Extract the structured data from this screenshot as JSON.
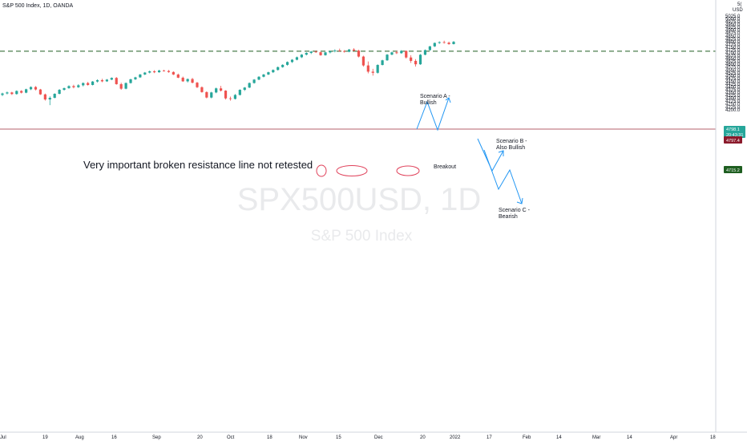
{
  "header": {
    "title": "S&P 500 Index, 1D, OANDA",
    "corner": "5(",
    "currency": "USD"
  },
  "watermark": {
    "symbol": "SPX500USD, 1D",
    "name": "S&P 500 Index"
  },
  "colors": {
    "up": "#26a69a",
    "down": "#ef5350",
    "resistance": "#1e5e20",
    "price_line": "#9c2c3a",
    "annotation": "#2196f3",
    "circle": "#e0415a"
  },
  "annotations": {
    "resistance_note": "Very important broken resistance line not retested",
    "breakout": "Breakout",
    "scenario_a": [
      "Scenario A -",
      "Bullish"
    ],
    "scenario_b": [
      "Scenario B -",
      "Also Bullish"
    ],
    "scenario_c": [
      "Scenario C -",
      "Bearish"
    ]
  },
  "price_labels": {
    "last": "4798.1",
    "countdown": "20:43:31",
    "prev": "4797.4",
    "resistance": "4715.2"
  },
  "chart_data": {
    "type": "candlestick",
    "title": "S&P 500 Index, 1D, OANDA",
    "y_ticks": [
      4200,
      4225,
      4250,
      4275,
      4300,
      4325,
      4350,
      4375,
      4400,
      4425,
      4450,
      4475,
      4500,
      4525,
      4550,
      4575,
      4600,
      4625,
      4650,
      4675,
      4700,
      4725,
      4750,
      4775,
      4800,
      4825,
      4850,
      4875,
      4900,
      4925,
      4950,
      4975,
      5000,
      5025,
      5050
    ],
    "x_ticks": [
      "Jul",
      "19",
      "Aug",
      "16",
      "Sep",
      "20",
      "Oct",
      "18",
      "Nov",
      "15",
      "Dec",
      "20",
      "2022",
      "17",
      "Feb",
      "14",
      "Mar",
      "14",
      "Apr",
      "18"
    ],
    "resistance_level": 4715.2,
    "current_price": 4798.1,
    "candles": [
      [
        4330,
        4350,
        4320,
        4343
      ],
      [
        4343,
        4360,
        4335,
        4352
      ],
      [
        4352,
        4358,
        4330,
        4338
      ],
      [
        4338,
        4370,
        4333,
        4365
      ],
      [
        4365,
        4372,
        4343,
        4350
      ],
      [
        4350,
        4385,
        4345,
        4380
      ],
      [
        4380,
        4405,
        4373,
        4400
      ],
      [
        4400,
        4408,
        4370,
        4378
      ],
      [
        4378,
        4383,
        4330,
        4335
      ],
      [
        4335,
        4342,
        4280,
        4290
      ],
      [
        4290,
        4318,
        4240,
        4305
      ],
      [
        4305,
        4345,
        4300,
        4340
      ],
      [
        4340,
        4382,
        4335,
        4375
      ],
      [
        4375,
        4395,
        4368,
        4390
      ],
      [
        4390,
        4415,
        4384,
        4408
      ],
      [
        4408,
        4420,
        4388,
        4398
      ],
      [
        4398,
        4425,
        4392,
        4415
      ],
      [
        4415,
        4440,
        4405,
        4435
      ],
      [
        4435,
        4445,
        4412,
        4418
      ],
      [
        4418,
        4452,
        4414,
        4448
      ],
      [
        4448,
        4468,
        4440,
        4460
      ],
      [
        4460,
        4472,
        4442,
        4450
      ],
      [
        4450,
        4470,
        4445,
        4465
      ],
      [
        4465,
        4485,
        4460,
        4480
      ],
      [
        4480,
        4488,
        4420,
        4425
      ],
      [
        4425,
        4438,
        4375,
        4385
      ],
      [
        4385,
        4440,
        4380,
        4435
      ],
      [
        4435,
        4472,
        4430,
        4468
      ],
      [
        4468,
        4490,
        4462,
        4485
      ],
      [
        4485,
        4515,
        4480,
        4510
      ],
      [
        4510,
        4532,
        4505,
        4527
      ],
      [
        4527,
        4545,
        4520,
        4538
      ],
      [
        4538,
        4548,
        4522,
        4530
      ],
      [
        4530,
        4552,
        4525,
        4545
      ],
      [
        4545,
        4552,
        4536,
        4541
      ],
      [
        4541,
        4550,
        4525,
        4532
      ],
      [
        4532,
        4538,
        4505,
        4510
      ],
      [
        4510,
        4518,
        4478,
        4482
      ],
      [
        4482,
        4492,
        4445,
        4450
      ],
      [
        4450,
        4475,
        4440,
        4470
      ],
      [
        4470,
        4480,
        4432,
        4438
      ],
      [
        4438,
        4445,
        4390,
        4398
      ],
      [
        4398,
        4405,
        4350,
        4355
      ],
      [
        4355,
        4362,
        4300,
        4307
      ],
      [
        4307,
        4358,
        4300,
        4352
      ],
      [
        4352,
        4395,
        4345,
        4388
      ],
      [
        4388,
        4410,
        4360,
        4368
      ],
      [
        4368,
        4372,
        4290,
        4300
      ],
      [
        4300,
        4315,
        4280,
        4295
      ],
      [
        4295,
        4338,
        4290,
        4330
      ],
      [
        4330,
        4380,
        4325,
        4375
      ],
      [
        4375,
        4400,
        4365,
        4395
      ],
      [
        4395,
        4440,
        4390,
        4435
      ],
      [
        4435,
        4470,
        4430,
        4465
      ],
      [
        4465,
        4495,
        4460,
        4490
      ],
      [
        4490,
        4515,
        4485,
        4510
      ],
      [
        4510,
        4535,
        4505,
        4530
      ],
      [
        4530,
        4555,
        4523,
        4550
      ],
      [
        4550,
        4580,
        4545,
        4575
      ],
      [
        4575,
        4600,
        4570,
        4595
      ],
      [
        4595,
        4625,
        4588,
        4620
      ],
      [
        4620,
        4645,
        4612,
        4640
      ],
      [
        4640,
        4668,
        4635,
        4662
      ],
      [
        4662,
        4690,
        4655,
        4685
      ],
      [
        4685,
        4706,
        4678,
        4700
      ],
      [
        4700,
        4718,
        4690,
        4712
      ],
      [
        4712,
        4722,
        4700,
        4706
      ],
      [
        4706,
        4712,
        4675,
        4680
      ],
      [
        4680,
        4710,
        4676,
        4705
      ],
      [
        4705,
        4720,
        4696,
        4715
      ],
      [
        4715,
        4732,
        4705,
        4722
      ],
      [
        4722,
        4738,
        4710,
        4716
      ],
      [
        4716,
        4725,
        4703,
        4710
      ],
      [
        4710,
        4735,
        4706,
        4730
      ],
      [
        4730,
        4742,
        4715,
        4720
      ],
      [
        4720,
        4728,
        4660,
        4668
      ],
      [
        4668,
        4675,
        4580,
        4590
      ],
      [
        4590,
        4625,
        4520,
        4535
      ],
      [
        4535,
        4560,
        4500,
        4525
      ],
      [
        4525,
        4600,
        4518,
        4594
      ],
      [
        4594,
        4640,
        4590,
        4635
      ],
      [
        4635,
        4690,
        4630,
        4685
      ],
      [
        4685,
        4712,
        4680,
        4705
      ],
      [
        4705,
        4720,
        4690,
        4698
      ],
      [
        4698,
        4725,
        4692,
        4718
      ],
      [
        4718,
        4722,
        4650,
        4660
      ],
      [
        4660,
        4680,
        4612,
        4630
      ],
      [
        4630,
        4645,
        4580,
        4600
      ],
      [
        4600,
        4690,
        4595,
        4684
      ],
      [
        4684,
        4730,
        4680,
        4725
      ],
      [
        4725,
        4762,
        4720,
        4758
      ],
      [
        4758,
        4792,
        4752,
        4788
      ],
      [
        4788,
        4802,
        4780,
        4795
      ],
      [
        4795,
        4808,
        4782,
        4790
      ],
      [
        4790,
        4800,
        4772,
        4778
      ],
      [
        4778,
        4805,
        4774,
        4798
      ]
    ]
  }
}
